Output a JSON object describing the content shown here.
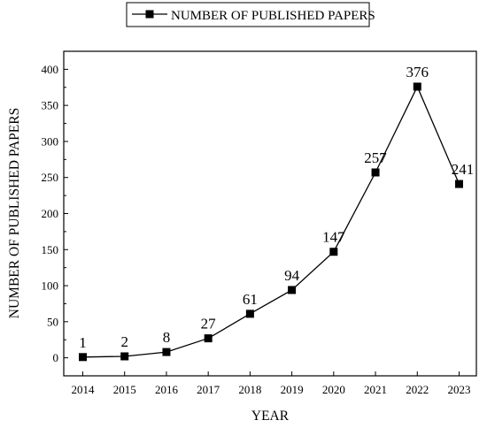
{
  "chart_data": {
    "type": "line",
    "categories": [
      "2014",
      "2015",
      "2016",
      "2017",
      "2018",
      "2019",
      "2020",
      "2021",
      "2022",
      "2023"
    ],
    "series": [
      {
        "name": "NUMBER OF PUBLISHED PAPERS",
        "values": [
          1,
          2,
          8,
          27,
          61,
          94,
          147,
          257,
          376,
          241
        ],
        "marker": "square",
        "color": "#000000"
      }
    ],
    "data_labels": [
      "1",
      "2",
      "8",
      "27",
      "61",
      "94",
      "147",
      "257",
      "376",
      "241"
    ],
    "xlabel": "YEAR",
    "ylabel": "NUMBER OF PUBLISHED PAPERS",
    "ylim": [
      -25,
      425
    ],
    "yticks": [
      0,
      50,
      100,
      150,
      200,
      250,
      300,
      350,
      400
    ],
    "grid": false,
    "legend": "top-center"
  }
}
